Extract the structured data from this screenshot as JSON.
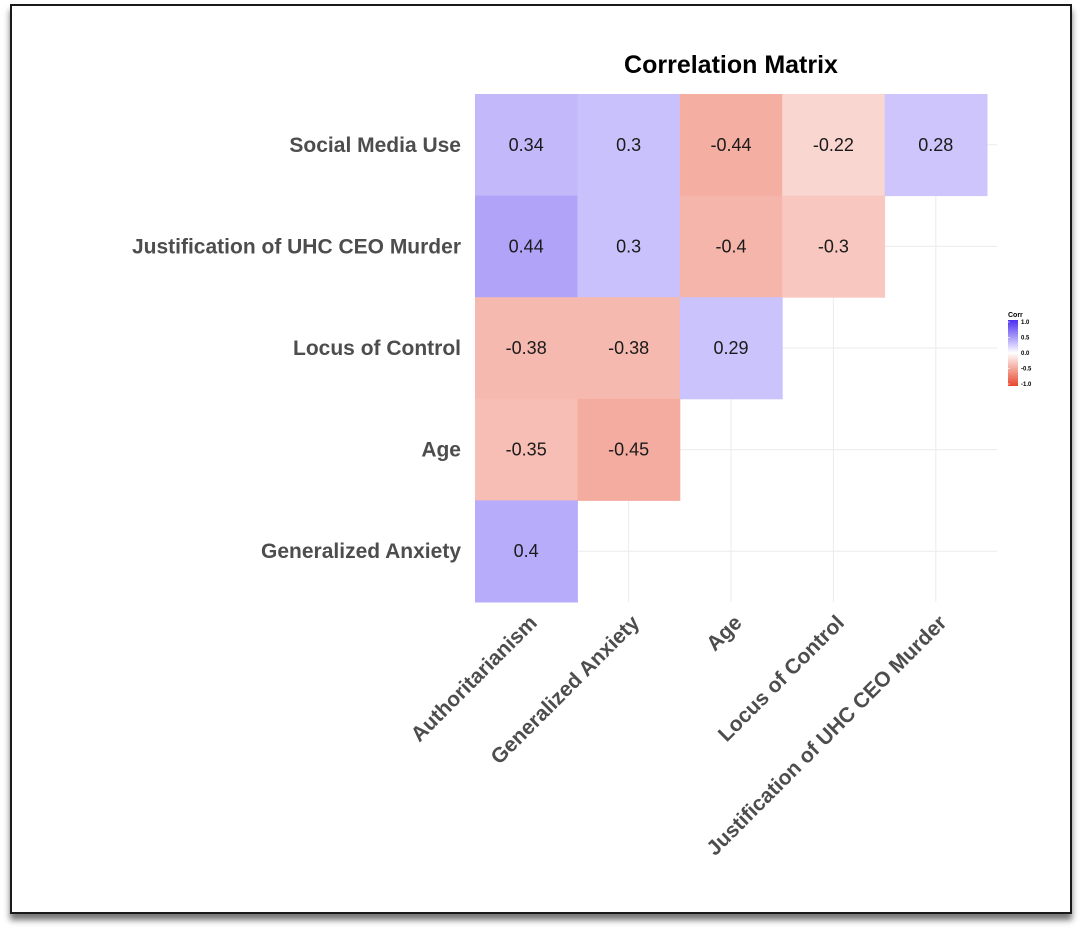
{
  "chart_data": {
    "type": "heatmap",
    "title": "Correlation Matrix",
    "x_categories": [
      "Authoritarianism",
      "Generalized Anxiety",
      "Age",
      "Locus of Control",
      "Justification of UHC CEO Murder"
    ],
    "y_categories": [
      "Social Media Use",
      "Justification of UHC CEO Murder",
      "Locus of Control",
      "Age",
      "Generalized Anxiety"
    ],
    "cells": [
      {
        "row": "Social Media Use",
        "col": "Authoritarianism",
        "value": 0.34,
        "label": "0.34"
      },
      {
        "row": "Social Media Use",
        "col": "Generalized Anxiety",
        "value": 0.3,
        "label": "0.3"
      },
      {
        "row": "Social Media Use",
        "col": "Age",
        "value": -0.44,
        "label": "-0.44"
      },
      {
        "row": "Social Media Use",
        "col": "Locus of Control",
        "value": -0.22,
        "label": "-0.22"
      },
      {
        "row": "Social Media Use",
        "col": "Justification of UHC CEO Murder",
        "value": 0.28,
        "label": "0.28"
      },
      {
        "row": "Justification of UHC CEO Murder",
        "col": "Authoritarianism",
        "value": 0.44,
        "label": "0.44"
      },
      {
        "row": "Justification of UHC CEO Murder",
        "col": "Generalized Anxiety",
        "value": 0.3,
        "label": "0.3"
      },
      {
        "row": "Justification of UHC CEO Murder",
        "col": "Age",
        "value": -0.4,
        "label": "-0.4"
      },
      {
        "row": "Justification of UHC CEO Murder",
        "col": "Locus of Control",
        "value": -0.3,
        "label": "-0.3"
      },
      {
        "row": "Locus of Control",
        "col": "Authoritarianism",
        "value": -0.38,
        "label": "-0.38"
      },
      {
        "row": "Locus of Control",
        "col": "Generalized Anxiety",
        "value": -0.38,
        "label": "-0.38"
      },
      {
        "row": "Locus of Control",
        "col": "Age",
        "value": 0.29,
        "label": "0.29"
      },
      {
        "row": "Age",
        "col": "Authoritarianism",
        "value": -0.35,
        "label": "-0.35"
      },
      {
        "row": "Age",
        "col": "Generalized Anxiety",
        "value": -0.45,
        "label": "-0.45"
      },
      {
        "row": "Generalized Anxiety",
        "col": "Authoritarianism",
        "value": 0.4,
        "label": "0.4"
      }
    ],
    "legend": {
      "title": "Corr",
      "ticks": [
        "1.0",
        "0.5",
        "0.0",
        "-0.5",
        "-1.0"
      ],
      "tick_values": [
        1.0,
        0.5,
        0.0,
        -0.5,
        -1.0
      ],
      "range": [
        -1.0,
        1.0
      ],
      "placement": "right"
    },
    "colors": {
      "high": "#4b2ff0",
      "mid": "#ffffff",
      "low": "#e8462c"
    },
    "grid": true
  }
}
